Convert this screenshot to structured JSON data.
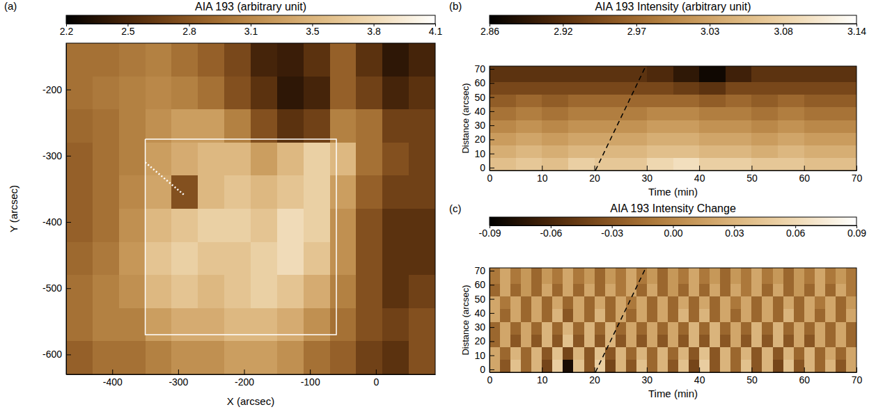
{
  "chart_data": [
    {
      "type": "heatmap",
      "panel": "(a)",
      "title": "AIA 193 (arbitrary unit)",
      "xlabel": "X (arcsec)",
      "ylabel": "Y (arcsec)",
      "xlim": [
        -470,
        90
      ],
      "ylim": [
        -630,
        -130
      ],
      "xticks": [
        -400,
        -300,
        -200,
        -100,
        0
      ],
      "yticks": [
        -200,
        -300,
        -400,
        -500,
        -600
      ],
      "x_edges": [
        -470,
        -430,
        -390,
        -350,
        -310,
        -270,
        -230,
        -190,
        -150,
        -110,
        -70,
        -30,
        10,
        50,
        90
      ],
      "y_edges": [
        -130,
        -180,
        -230,
        -280,
        -330,
        -380,
        -430,
        -480,
        -530,
        -580,
        -630
      ],
      "cells": [
        [
          3.0,
          3.0,
          3.05,
          3.1,
          3.0,
          2.9,
          2.75,
          2.5,
          2.45,
          2.6,
          2.9,
          2.6,
          2.4,
          2.5
        ],
        [
          3.0,
          3.05,
          3.1,
          3.15,
          3.1,
          3.0,
          2.8,
          2.6,
          2.4,
          2.5,
          2.9,
          2.7,
          2.5,
          2.6
        ],
        [
          2.95,
          3.0,
          3.1,
          3.2,
          3.3,
          3.3,
          3.1,
          2.8,
          2.6,
          2.7,
          3.1,
          3.0,
          2.7,
          2.7
        ],
        [
          2.9,
          3.0,
          3.1,
          3.3,
          3.4,
          3.5,
          3.5,
          3.3,
          3.5,
          3.7,
          3.5,
          3.0,
          2.8,
          2.7
        ],
        [
          2.9,
          3.0,
          3.15,
          3.35,
          2.8,
          3.5,
          3.6,
          3.5,
          3.6,
          3.7,
          3.3,
          2.9,
          2.7,
          2.7
        ],
        [
          2.9,
          3.0,
          3.2,
          3.5,
          3.6,
          3.7,
          3.7,
          3.6,
          3.8,
          3.7,
          3.2,
          2.8,
          2.6,
          2.6
        ],
        [
          2.95,
          3.05,
          3.25,
          3.6,
          3.7,
          3.6,
          3.6,
          3.7,
          3.8,
          3.6,
          3.2,
          2.8,
          2.6,
          2.6
        ],
        [
          3.0,
          3.1,
          3.2,
          3.5,
          3.6,
          3.5,
          3.6,
          3.7,
          3.6,
          3.4,
          3.1,
          2.8,
          2.6,
          2.7
        ],
        [
          3.0,
          3.1,
          3.1,
          3.3,
          3.4,
          3.4,
          3.5,
          3.5,
          3.4,
          3.2,
          3.0,
          2.8,
          2.7,
          2.8
        ],
        [
          2.9,
          3.0,
          3.0,
          3.1,
          3.2,
          3.2,
          3.3,
          3.3,
          3.2,
          3.0,
          2.9,
          2.7,
          2.6,
          2.8
        ]
      ],
      "colorbar": {
        "range": [
          2.2,
          4.1
        ],
        "ticks": [
          2.2,
          {
            "value": 2.517,
            "label": "2.5"
          },
          {
            "value": 2.833,
            "label": "2.8"
          },
          {
            "value": 3.15,
            "label": "3.1"
          },
          {
            "value": 3.467,
            "label": "3.5"
          },
          {
            "value": 3.783,
            "label": "3.8"
          },
          4.1
        ]
      },
      "lines": [
        {
          "x": [
            -350,
            -60,
            -60,
            -350,
            -350
          ],
          "y": [
            -275,
            -275,
            -570,
            -570,
            -275
          ],
          "line_style": "solid",
          "color": "#ffffff"
        },
        {
          "x": [
            -350,
            -290
          ],
          "y": [
            -310,
            -360
          ],
          "line_style": "dotted",
          "color": "#ffffff"
        }
      ]
    },
    {
      "type": "heatmap",
      "panel": "(b)",
      "title": "AIA 193 Intensity (arbitrary unit)",
      "xlabel": "Time (min)",
      "ylabel": "Distance (arcsec)",
      "xlim": [
        0,
        70
      ],
      "ylim": [
        -2,
        72
      ],
      "xticks": [
        0,
        10,
        20,
        30,
        40,
        50,
        60,
        70
      ],
      "yticks": [
        0,
        10,
        20,
        30,
        40,
        50,
        60,
        70
      ],
      "x_edges": [
        0,
        5,
        10,
        15,
        20,
        25,
        30,
        35,
        40,
        45,
        50,
        55,
        60,
        65,
        70
      ],
      "y_edges": [
        -2,
        7,
        16,
        25,
        34,
        43,
        52,
        61,
        72
      ],
      "cells": [
        [
          3.06,
          3.07,
          3.06,
          3.08,
          3.07,
          3.07,
          3.09,
          3.1,
          3.08,
          3.08,
          3.07,
          3.07,
          3.06,
          3.06
        ],
        [
          3.04,
          3.05,
          3.04,
          3.05,
          3.05,
          3.05,
          3.06,
          3.06,
          3.05,
          3.05,
          3.04,
          3.05,
          3.04,
          3.04
        ],
        [
          3.02,
          3.03,
          3.02,
          3.03,
          3.03,
          3.03,
          3.04,
          3.04,
          3.03,
          3.03,
          3.02,
          3.03,
          3.02,
          3.02
        ],
        [
          3.0,
          3.01,
          3.0,
          3.01,
          3.01,
          3.01,
          3.02,
          3.02,
          3.01,
          3.01,
          3.0,
          3.01,
          3.0,
          3.0
        ],
        [
          2.98,
          2.99,
          2.98,
          2.99,
          2.99,
          2.99,
          3.0,
          3.0,
          2.99,
          2.99,
          2.98,
          2.99,
          2.98,
          2.98
        ],
        [
          2.96,
          2.97,
          2.96,
          2.97,
          2.97,
          2.97,
          2.97,
          2.97,
          2.96,
          2.97,
          2.96,
          2.97,
          2.96,
          2.96
        ],
        [
          2.94,
          2.94,
          2.94,
          2.94,
          2.94,
          2.94,
          2.94,
          2.93,
          2.92,
          2.94,
          2.94,
          2.94,
          2.94,
          2.94
        ],
        [
          2.92,
          2.92,
          2.92,
          2.92,
          2.92,
          2.92,
          2.91,
          2.89,
          2.87,
          2.9,
          2.92,
          2.92,
          2.92,
          2.92
        ]
      ],
      "colorbar": {
        "range": [
          2.86,
          3.14
        ],
        "ticks": [
          2.86,
          {
            "value": 2.916,
            "label": "2.92"
          },
          {
            "value": 2.972,
            "label": "2.97"
          },
          {
            "value": 3.028,
            "label": "3.03"
          },
          {
            "value": 3.084,
            "label": "3.08"
          },
          3.14
        ]
      },
      "lines": [
        {
          "x": [
            20.2,
            29.8
          ],
          "y": [
            -2,
            72
          ],
          "line_style": "dashed",
          "color": "#000000"
        }
      ]
    },
    {
      "type": "heatmap",
      "panel": "(c)",
      "title": "AIA 193 Intensity Change",
      "xlabel": "Time (min)",
      "ylabel": "Distance (arcsec)",
      "xlim": [
        0,
        70
      ],
      "ylim": [
        -2,
        72
      ],
      "xticks": [
        0,
        10,
        20,
        30,
        40,
        50,
        60,
        70
      ],
      "yticks": [
        0,
        10,
        20,
        30,
        40,
        50,
        60,
        70
      ],
      "x_edges": [
        0,
        2,
        4,
        6,
        8,
        10,
        12,
        14,
        16,
        18,
        20,
        22,
        24,
        26,
        28,
        30,
        32,
        34,
        36,
        38,
        40,
        42,
        44,
        46,
        48,
        50,
        52,
        54,
        56,
        58,
        60,
        62,
        64,
        66,
        68,
        70
      ],
      "y_edges": [
        -2,
        7,
        16,
        25,
        34,
        43,
        52,
        61,
        72
      ],
      "cells": [
        [
          0.02,
          -0.03,
          0.04,
          -0.02,
          0.03,
          -0.04,
          0.05,
          -0.08,
          0.04,
          -0.03,
          0.05,
          -0.04,
          0.03,
          -0.03,
          0.04,
          -0.02,
          0.03,
          -0.03,
          0.04,
          -0.04,
          0.05,
          -0.03,
          0.03,
          -0.02,
          0.04,
          -0.03,
          0.03,
          -0.04,
          0.04,
          -0.03,
          0.03,
          -0.02,
          0.03,
          -0.03,
          0.02
        ],
        [
          0.02,
          -0.02,
          0.03,
          -0.02,
          0.03,
          -0.03,
          0.04,
          -0.04,
          0.03,
          -0.03,
          0.04,
          -0.03,
          0.03,
          -0.02,
          0.03,
          -0.02,
          0.03,
          -0.02,
          0.03,
          -0.03,
          0.04,
          -0.03,
          0.03,
          -0.02,
          0.03,
          -0.03,
          0.03,
          -0.03,
          0.03,
          -0.02,
          0.03,
          -0.02,
          0.02,
          -0.02,
          0.02
        ],
        [
          -0.02,
          0.02,
          -0.03,
          0.02,
          -0.03,
          0.03,
          -0.03,
          0.04,
          -0.03,
          0.03,
          -0.03,
          0.03,
          -0.03,
          0.02,
          -0.03,
          0.02,
          -0.03,
          0.02,
          -0.03,
          0.03,
          -0.03,
          0.03,
          -0.03,
          0.02,
          -0.03,
          0.03,
          -0.03,
          0.03,
          -0.03,
          0.02,
          -0.03,
          0.02,
          -0.02,
          0.02,
          -0.02
        ],
        [
          -0.02,
          0.02,
          -0.02,
          0.02,
          -0.02,
          0.03,
          -0.02,
          0.03,
          -0.02,
          0.03,
          -0.02,
          0.03,
          -0.02,
          0.02,
          -0.02,
          0.02,
          -0.02,
          0.02,
          -0.02,
          0.03,
          -0.02,
          0.03,
          -0.02,
          0.02,
          -0.02,
          0.03,
          -0.02,
          0.03,
          -0.02,
          0.02,
          -0.02,
          0.02,
          -0.02,
          0.02,
          -0.02
        ],
        [
          0.02,
          -0.02,
          0.02,
          -0.02,
          0.02,
          -0.02,
          0.03,
          -0.03,
          0.02,
          -0.02,
          0.03,
          -0.02,
          0.02,
          -0.02,
          0.02,
          -0.02,
          0.02,
          -0.02,
          0.03,
          -0.02,
          0.03,
          -0.02,
          0.02,
          -0.02,
          0.02,
          -0.02,
          0.02,
          -0.02,
          0.03,
          -0.02,
          0.02,
          -0.02,
          0.02,
          -0.02,
          0.02
        ],
        [
          0.02,
          -0.01,
          0.02,
          -0.02,
          0.02,
          -0.02,
          0.02,
          -0.02,
          0.02,
          -0.02,
          0.02,
          -0.02,
          0.02,
          -0.01,
          0.02,
          -0.02,
          0.02,
          -0.02,
          0.02,
          -0.02,
          0.02,
          -0.02,
          0.02,
          -0.01,
          0.02,
          -0.02,
          0.02,
          -0.02,
          0.02,
          -0.02,
          0.02,
          -0.01,
          0.02,
          -0.02,
          0.01
        ],
        [
          -0.02,
          0.02,
          -0.02,
          0.01,
          -0.02,
          0.02,
          -0.02,
          0.02,
          -0.02,
          0.02,
          -0.02,
          0.02,
          -0.01,
          0.02,
          -0.02,
          0.02,
          -0.02,
          0.01,
          -0.02,
          0.02,
          -0.02,
          0.02,
          -0.02,
          0.02,
          -0.01,
          0.02,
          -0.02,
          0.02,
          -0.02,
          0.01,
          -0.02,
          0.02,
          -0.02,
          0.02,
          -0.01
        ],
        [
          -0.01,
          0.02,
          -0.01,
          0.01,
          -0.02,
          0.01,
          -0.01,
          0.02,
          -0.01,
          0.01,
          -0.02,
          0.01,
          -0.01,
          0.02,
          -0.01,
          0.01,
          -0.02,
          0.01,
          -0.01,
          0.02,
          -0.01,
          0.01,
          -0.02,
          0.01,
          -0.01,
          0.02,
          -0.01,
          0.01,
          -0.02,
          0.01,
          -0.01,
          0.02,
          -0.01,
          0.01,
          -0.01
        ]
      ],
      "colorbar": {
        "range": [
          -0.09,
          0.09
        ],
        "ticks": [
          -0.09,
          -0.06,
          -0.03,
          {
            "value": 0,
            "label": "0.00"
          },
          0.03,
          0.06,
          0.09
        ]
      },
      "lines": [
        {
          "x": [
            20.2,
            29.8
          ],
          "y": [
            -2,
            72
          ],
          "line_style": "dashed",
          "color": "#000000"
        }
      ]
    }
  ]
}
